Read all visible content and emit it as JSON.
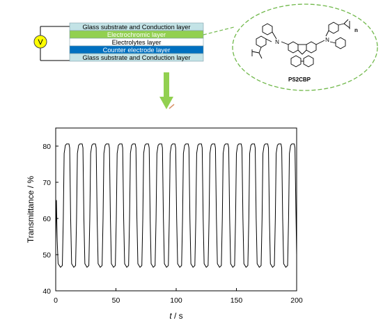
{
  "device": {
    "voltage_symbol": "V",
    "layers": [
      {
        "label": "Glass substrate and Conduction layer",
        "color": "#c3e3e6"
      },
      {
        "label": "Electrochromic layer",
        "color": "#92d050"
      },
      {
        "label": "Electrolytes layer",
        "color": "#ffffff"
      },
      {
        "label": "Counter electrode layer",
        "color": "#0070c0"
      },
      {
        "label": "Glass substrate and Conduction layer",
        "color": "#c3e3e6"
      }
    ]
  },
  "molecule": {
    "name": "PS2CBP",
    "repeat_label": "n",
    "n_atom_left": "N",
    "n_atom_right": "N"
  },
  "arrow_color": "#92d050",
  "chart_data": {
    "type": "line",
    "title": "",
    "xlabel_italic": "t",
    "xlabel_unit": " / s",
    "ylabel": "Transmittance / %",
    "xlim": [
      0,
      200
    ],
    "ylim": [
      40,
      85
    ],
    "x_ticks": [
      0,
      50,
      100,
      150,
      200
    ],
    "y_ticks": [
      40,
      50,
      60,
      70,
      80
    ],
    "grid": false,
    "line_color": "#000000",
    "series": [
      {
        "name": "",
        "values": [
          [
            0,
            54
          ],
          [
            0.6,
            65
          ],
          [
            1.2,
            54
          ],
          [
            2,
            47.5
          ],
          [
            4,
            46.5
          ],
          [
            5.5,
            47
          ],
          [
            6.3,
            60
          ],
          [
            7,
            78
          ],
          [
            8,
            80.2
          ],
          [
            9,
            80.6
          ],
          [
            11,
            80.6
          ],
          [
            11.6,
            79.5
          ],
          [
            12.4,
            60
          ],
          [
            13.2,
            47.5
          ],
          [
            15,
            46.5
          ],
          [
            16.5,
            47
          ],
          [
            17.3,
            60
          ],
          [
            18,
            78
          ],
          [
            19,
            80.2
          ],
          [
            20,
            80.6
          ],
          [
            22,
            80.6
          ],
          [
            22.6,
            79.5
          ],
          [
            23.4,
            60
          ],
          [
            24.2,
            47.5
          ],
          [
            26,
            46.5
          ],
          [
            27.5,
            47
          ],
          [
            28.3,
            60
          ],
          [
            29,
            78
          ],
          [
            30,
            80.2
          ],
          [
            31,
            80.6
          ],
          [
            33,
            80.6
          ],
          [
            33.6,
            79.5
          ],
          [
            34.4,
            60
          ],
          [
            35.2,
            47.5
          ],
          [
            37,
            46.5
          ],
          [
            38.5,
            47
          ],
          [
            39.3,
            60
          ],
          [
            40,
            78
          ],
          [
            41,
            80.2
          ],
          [
            42,
            80.6
          ],
          [
            44,
            80.6
          ],
          [
            44.6,
            79.5
          ],
          [
            45.4,
            60
          ],
          [
            46.2,
            47.5
          ],
          [
            48,
            46.5
          ],
          [
            49.5,
            47
          ],
          [
            50.3,
            60
          ],
          [
            51,
            78
          ],
          [
            52,
            80.2
          ],
          [
            53,
            80.6
          ],
          [
            55,
            80.6
          ],
          [
            55.6,
            79.5
          ],
          [
            56.4,
            60
          ],
          [
            57.2,
            47.5
          ],
          [
            59,
            46.5
          ],
          [
            60.5,
            47
          ],
          [
            61.3,
            60
          ],
          [
            62,
            78
          ],
          [
            63,
            80.2
          ],
          [
            64,
            80.6
          ],
          [
            66,
            80.6
          ],
          [
            66.6,
            79.5
          ],
          [
            67.4,
            60
          ],
          [
            68.2,
            47.5
          ],
          [
            70,
            46.5
          ],
          [
            71.5,
            47
          ],
          [
            72.3,
            60
          ],
          [
            73,
            78
          ],
          [
            74,
            80.2
          ],
          [
            75,
            80.6
          ],
          [
            77,
            80.6
          ],
          [
            77.6,
            79.5
          ],
          [
            78.4,
            60
          ],
          [
            79.2,
            47.5
          ],
          [
            81,
            46.5
          ],
          [
            82.5,
            47
          ],
          [
            83.3,
            60
          ],
          [
            84,
            78
          ],
          [
            85,
            80.2
          ],
          [
            86,
            80.6
          ],
          [
            88,
            80.6
          ],
          [
            88.6,
            79.5
          ],
          [
            89.4,
            60
          ],
          [
            90.2,
            47.5
          ],
          [
            92,
            46.5
          ],
          [
            93.5,
            47
          ],
          [
            94.3,
            60
          ],
          [
            95,
            78
          ],
          [
            96,
            80.2
          ],
          [
            97,
            80.6
          ],
          [
            99,
            80.6
          ],
          [
            99.6,
            79.5
          ],
          [
            100.4,
            60
          ],
          [
            101.2,
            47.5
          ],
          [
            103,
            46.5
          ],
          [
            104.5,
            47
          ],
          [
            105.3,
            60
          ],
          [
            106,
            78
          ],
          [
            107,
            80.2
          ],
          [
            108,
            80.6
          ],
          [
            110,
            80.6
          ],
          [
            110.6,
            79.5
          ],
          [
            111.4,
            60
          ],
          [
            112.2,
            47.5
          ],
          [
            114,
            46.5
          ],
          [
            115.5,
            47
          ],
          [
            116.3,
            60
          ],
          [
            117,
            78
          ],
          [
            118,
            80.2
          ],
          [
            119,
            80.6
          ],
          [
            121,
            80.6
          ],
          [
            121.6,
            79.5
          ],
          [
            122.4,
            60
          ],
          [
            123.2,
            47.5
          ],
          [
            125,
            46.5
          ],
          [
            126.5,
            47
          ],
          [
            127.3,
            60
          ],
          [
            128,
            78
          ],
          [
            129,
            80.2
          ],
          [
            130,
            80.6
          ],
          [
            132,
            80.6
          ],
          [
            132.6,
            79.5
          ],
          [
            133.4,
            60
          ],
          [
            134.2,
            47.5
          ],
          [
            136,
            46.5
          ],
          [
            137.5,
            47
          ],
          [
            138.3,
            60
          ],
          [
            139,
            78
          ],
          [
            140,
            80.2
          ],
          [
            141,
            80.6
          ],
          [
            143,
            80.6
          ],
          [
            143.6,
            79.5
          ],
          [
            144.4,
            60
          ],
          [
            145.2,
            47.5
          ],
          [
            147,
            46.5
          ],
          [
            148.5,
            47
          ],
          [
            149.3,
            60
          ],
          [
            150,
            78
          ],
          [
            151,
            80.2
          ],
          [
            152,
            80.6
          ],
          [
            154,
            80.6
          ],
          [
            154.6,
            79.5
          ],
          [
            155.4,
            60
          ],
          [
            156.2,
            47.5
          ],
          [
            158,
            46.5
          ],
          [
            159.5,
            47
          ],
          [
            160.3,
            60
          ],
          [
            161,
            78
          ],
          [
            162,
            80.2
          ],
          [
            163,
            80.6
          ],
          [
            165,
            80.6
          ],
          [
            165.6,
            79.5
          ],
          [
            166.4,
            60
          ],
          [
            167.2,
            47.5
          ],
          [
            169,
            46.5
          ],
          [
            170.5,
            47
          ],
          [
            171.3,
            60
          ],
          [
            172,
            78
          ],
          [
            173,
            80.2
          ],
          [
            174,
            80.6
          ],
          [
            176,
            80.6
          ],
          [
            176.6,
            79.5
          ],
          [
            177.4,
            60
          ],
          [
            178.2,
            47.5
          ],
          [
            180,
            46.5
          ],
          [
            181.5,
            47
          ],
          [
            182.3,
            60
          ],
          [
            183,
            78
          ],
          [
            184,
            80.2
          ],
          [
            185,
            80.6
          ],
          [
            187,
            80.6
          ],
          [
            187.6,
            79.5
          ],
          [
            188.4,
            60
          ],
          [
            189.2,
            47.5
          ],
          [
            191,
            46.5
          ],
          [
            192.5,
            47
          ],
          [
            193.3,
            60
          ],
          [
            194,
            78
          ],
          [
            195,
            80.2
          ],
          [
            196,
            80.6
          ],
          [
            198,
            80.6
          ],
          [
            198.6,
            79.5
          ],
          [
            199.4,
            62
          ],
          [
            200,
            50
          ]
        ]
      }
    ]
  }
}
